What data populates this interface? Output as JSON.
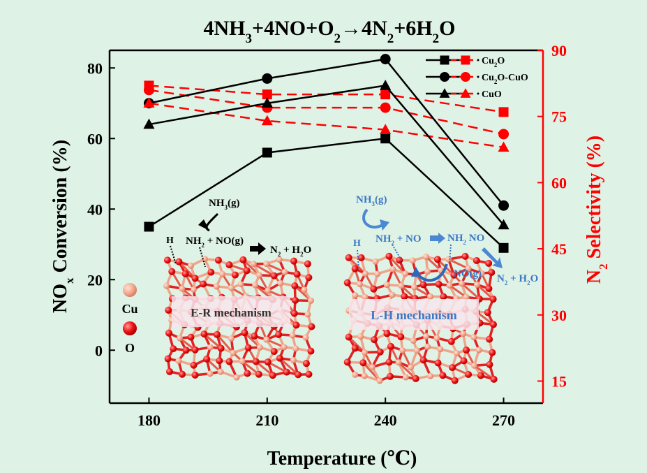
{
  "chart_data": {
    "type": "line",
    "title": {
      "parts": [
        "4NH",
        "3",
        "+4NO+O",
        "2",
        "→4N",
        "2",
        "+6H",
        "2",
        "O"
      ]
    },
    "xlabel": "Temperature (℃)",
    "ylabel_left": {
      "parts": [
        "NO",
        "x",
        " Conversion (%)"
      ]
    },
    "ylabel_right": {
      "parts": [
        "N",
        "2",
        " Selectivity (%)"
      ]
    },
    "x": [
      180,
      210,
      240,
      270
    ],
    "xlim": [
      170,
      280
    ],
    "x_ticks": [
      180,
      210,
      240,
      270
    ],
    "ylim_left": [
      -15,
      85
    ],
    "y_ticks_left": [
      0,
      20,
      40,
      60,
      80
    ],
    "ylim_right": [
      10,
      90
    ],
    "y_ticks_right": [
      15,
      30,
      45,
      60,
      75,
      90
    ],
    "grid": false,
    "legend_position": "top-right",
    "colors": {
      "conversion": "#000000",
      "selectivity": "#ff0000"
    },
    "series": [
      {
        "name": "Cu2O",
        "legend_parts": [
          "Cu",
          "2",
          "O"
        ],
        "marker": "square",
        "conversion": [
          35,
          56,
          60,
          29
        ],
        "selectivity": [
          82,
          80,
          80,
          76
        ]
      },
      {
        "name": "Cu2O-CuO",
        "legend_parts": [
          "Cu",
          "2",
          "O-CuO"
        ],
        "marker": "circle",
        "conversion": [
          70,
          77,
          82.5,
          41
        ],
        "selectivity": [
          81,
          77,
          77,
          71
        ]
      },
      {
        "name": "CuO",
        "legend_parts": [
          "CuO"
        ],
        "marker": "triangle",
        "conversion": [
          64,
          70,
          75,
          35.5
        ],
        "selectivity": [
          78,
          74,
          72,
          68
        ]
      }
    ],
    "annotations": {
      "legend_cu": "Cu",
      "legend_o": "O",
      "er_mechanism": "E-R mechanism",
      "lh_mechanism": "L-H mechanism",
      "er_nh3g": {
        "parts": [
          "NH",
          "3",
          "(g)"
        ]
      },
      "er_h": "H",
      "er_nh2_no": {
        "parts": [
          "NH",
          "2",
          " + NO(g)"
        ]
      },
      "er_product": {
        "parts": [
          "N",
          "2",
          " + H",
          "2",
          "O"
        ]
      },
      "lh_nh3g": {
        "parts": [
          "NH",
          "3",
          "(g)"
        ]
      },
      "lh_h": "H",
      "lh_nh2_no": {
        "parts": [
          "NH",
          "2",
          " + NO"
        ]
      },
      "lh_nh2no": {
        "parts": [
          "NH",
          "2",
          " NO"
        ]
      },
      "lh_nog": "NO(g)",
      "lh_product": {
        "parts": [
          "N",
          "2",
          " + H",
          "2",
          "O"
        ]
      }
    }
  }
}
